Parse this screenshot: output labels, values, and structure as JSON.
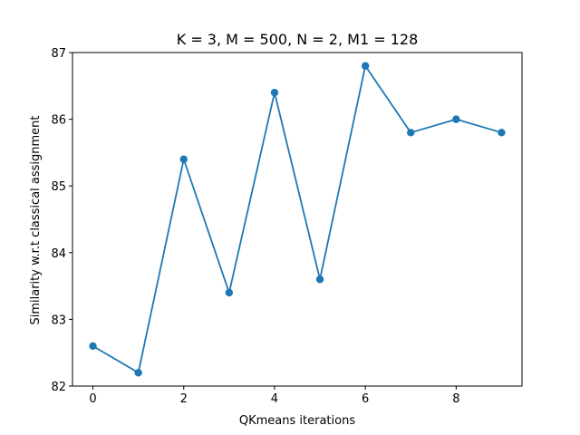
{
  "chart_data": {
    "type": "line",
    "title": "K = 3, M = 500, N = 2, M1 = 128",
    "xlabel": "QKmeans iterations",
    "ylabel": "Similarity w.r.t classical assignment",
    "x": [
      0,
      1,
      2,
      3,
      4,
      5,
      6,
      7,
      8,
      9
    ],
    "series": [
      {
        "name": "similarity",
        "values": [
          82.6,
          82.2,
          85.4,
          83.4,
          86.4,
          83.6,
          86.8,
          85.8,
          86.0,
          85.8
        ],
        "color": "#1f77b4",
        "marker": "circle"
      }
    ],
    "xlim": [
      -0.45,
      9.45
    ],
    "ylim": [
      82.0,
      87.0
    ],
    "xticks": [
      0,
      2,
      4,
      6,
      8
    ],
    "yticks": [
      82,
      83,
      84,
      85,
      86,
      87
    ],
    "grid": false,
    "legend": "none"
  }
}
